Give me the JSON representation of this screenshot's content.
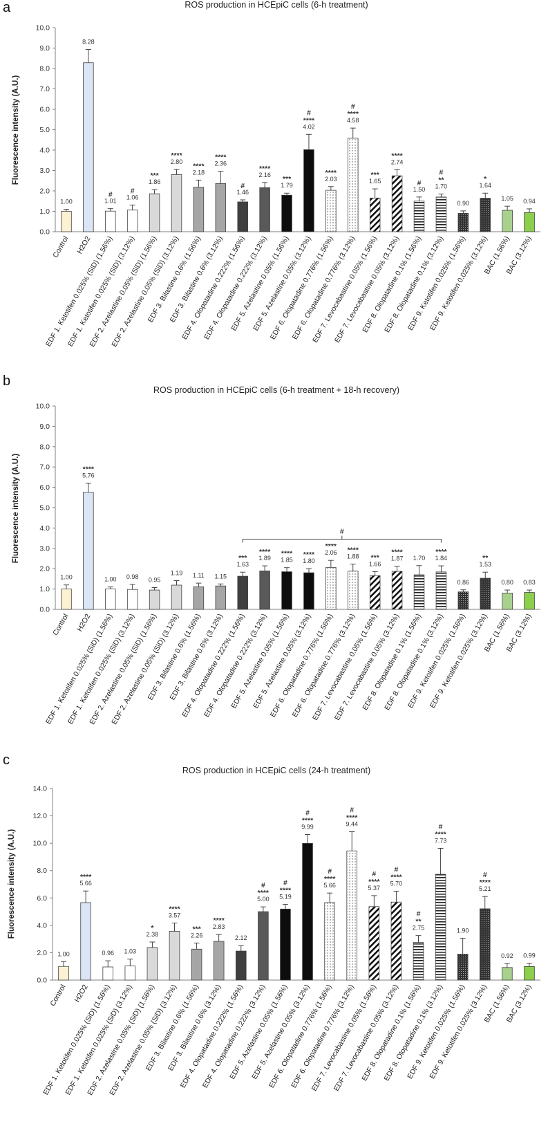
{
  "chart_data": [
    {
      "type": "bar",
      "panel": "a",
      "title": "ROS production in HCEpiC cells (6-h treatment)",
      "ylabel": "Fluorescence intensity (A.U.)",
      "xlabel": "",
      "ylim": [
        0,
        10
      ],
      "yticks": [
        "0.0",
        "1.0",
        "2.0",
        "3.0",
        "4.0",
        "5.0",
        "6.0",
        "7.0",
        "8.0",
        "9.0",
        "10.0"
      ],
      "grid": false,
      "categories": [
        "Control",
        "H2O2",
        "EDF 1. Ketotifen 0.025% (SiD) (1.56%)",
        "EDF 1. Ketotifen 0.025% (SiD) (3.12%)",
        "EDF 2. Azelastine 0.05% (SiD) (1.56%)",
        "EDF 2. Azelastine 0.05% (SiD) (3.12%)",
        "EDF 3. Bilastine 0.6% (1.56%)",
        "EDF 3. Bilastine 0.6% (3.12%)",
        "EDF 4. Olopatadine 0.222% (1.56%)",
        "EDF 4. Olopatadine 0.222% (3.12%)",
        "EDF 5. Azelastine 0.05% (1.56%)",
        "EDF 5. Azelastine 0.05% (3.12%)",
        "EDF 6. Olopatadine 0.776% (1.56%)",
        "EDF 6. Olopatadine 0.776% (3.12%)",
        "EDF 7. Levocabastine 0.05% (1.56%)",
        "EDF 7. Levocabastine 0.05% (3.12%)",
        "EDF 8. Olopatadine 0.1% (1.56%)",
        "EDF 8. Olopatadine 0.1% (3.12%)",
        "EDF 9. Ketotifen 0.025% (1.56%)",
        "EDF 9. Ketotifen 0.025% (3.12%)",
        "BAC (1.56%)",
        "BAC (3.12%)"
      ],
      "values": [
        1.0,
        8.28,
        1.01,
        1.06,
        1.86,
        2.8,
        2.18,
        2.36,
        1.46,
        2.16,
        1.79,
        4.02,
        2.03,
        4.58,
        1.65,
        2.74,
        1.5,
        1.7,
        0.9,
        1.64,
        1.05,
        0.94
      ],
      "value_labels": [
        "1.00",
        "8.28",
        "1.01",
        "1.06",
        "1.86",
        "2.80",
        "2.18",
        "2.36",
        "1.46",
        "2.16",
        "1.79",
        "4.02",
        "2.03",
        "4.58",
        "1.65",
        "2.74",
        "1.50",
        "1.70",
        "0.90",
        "1.64",
        "1.05",
        "0.94"
      ],
      "errors": [
        0.1,
        0.65,
        0.12,
        0.25,
        0.2,
        0.25,
        0.35,
        0.6,
        0.1,
        0.25,
        0.1,
        0.75,
        0.18,
        0.5,
        0.45,
        0.3,
        0.2,
        0.15,
        0.12,
        0.25,
        0.2,
        0.18
      ],
      "significance": [
        "",
        "",
        "#",
        "#",
        "***",
        "****",
        "****",
        "****",
        "#",
        "****",
        "***",
        "****",
        "****",
        "****",
        "***",
        "****",
        "#",
        "**",
        "",
        "*",
        "",
        ""
      ],
      "significance_hash": [
        "",
        "",
        "",
        "",
        "",
        "",
        "",
        "",
        "",
        "",
        "",
        "#",
        "",
        "#",
        "",
        "",
        "",
        "#",
        "",
        "",
        "",
        ""
      ]
    },
    {
      "type": "bar",
      "panel": "b",
      "title": "ROS production in HCEpiC cells (6-h treatment + 18-h recovery)",
      "ylabel": "Fluorescence intensity (A.U.)",
      "xlabel": "",
      "ylim": [
        0,
        10
      ],
      "yticks": [
        "0.0",
        "1.0",
        "2.0",
        "3.0",
        "4.0",
        "5.0",
        "6.0",
        "7.0",
        "8.0",
        "9.0",
        "10.0"
      ],
      "grid": false,
      "bracket": {
        "from_index": 8,
        "to_index": 17,
        "label": "#"
      },
      "categories": [
        "Control",
        "H2O2",
        "EDF 1. Ketotifen 0.025% (SiD) (1.56%)",
        "EDF 1. Ketotifen 0.025% (SiD) (3.12%)",
        "EDF 2. Azelastine 0.05% (SiD) (1.56%)",
        "EDF 2. Azelastine 0.05% (SiD) (3.12%)",
        "EDF 3. Bilastine 0.6% (1.56%)",
        "EDF 3. Bilastine 0.6% (3.12%)",
        "EDF 4. Olopatadine 0.222% (1.56%)",
        "EDF 4. Olopatadine 0.222% (3.12%)",
        "EDF 5. Azelastine 0.05% (1.56%)",
        "EDF 5. Azelastine 0.05% (3.12%)",
        "EDF 6. Olopatadine 0.776% (1.56%)",
        "EDF 6. Olopatadine 0.776% (3.12%)",
        "EDF 7. Levocabastine 0.05% (1.56%)",
        "EDF 7. Levocabastine 0.05% (3.12%)",
        "EDF 8. Olopatadine 0.1% (1.56%)",
        "EDF 8. Olopatadine 0.1% (3.12%)",
        "EDF 9. Ketotifen 0.025% (1.56%)",
        "EDF 9. Ketotifen 0.025% (3.12%)",
        "BAC (1.56%)",
        "BAC (3.12%)"
      ],
      "values": [
        1.0,
        5.76,
        1.0,
        0.98,
        0.95,
        1.19,
        1.11,
        1.15,
        1.63,
        1.89,
        1.85,
        1.8,
        2.06,
        1.88,
        1.66,
        1.87,
        1.7,
        1.84,
        0.86,
        1.53,
        0.8,
        0.83
      ],
      "value_labels": [
        "1.00",
        "5.76",
        "1.00",
        "0.98",
        "0.95",
        "1.19",
        "1.11",
        "1.15",
        "1.63",
        "1.89",
        "1.85",
        "1.80",
        "2.06",
        "1.88",
        "1.66",
        "1.87",
        "1.70",
        "1.84",
        "0.86",
        "1.53",
        "0.80",
        "0.83"
      ],
      "errors": [
        0.2,
        0.45,
        0.1,
        0.25,
        0.12,
        0.22,
        0.18,
        0.1,
        0.2,
        0.25,
        0.2,
        0.2,
        0.35,
        0.35,
        0.2,
        0.25,
        0.45,
        0.3,
        0.1,
        0.3,
        0.15,
        0.12
      ],
      "significance": [
        "",
        "****",
        "",
        "",
        "",
        "",
        "",
        "",
        "***",
        "****",
        "****",
        "****",
        "****",
        "****",
        "***",
        "****",
        "",
        "****",
        "",
        "**",
        "",
        ""
      ],
      "significance_hash": [
        "",
        "",
        "",
        "",
        "",
        "",
        "",
        "",
        "",
        "",
        "",
        "",
        "",
        "",
        "",
        "",
        "",
        "",
        "",
        "",
        "",
        ""
      ]
    },
    {
      "type": "bar",
      "panel": "c",
      "title": "ROS production in HCEpiC cells (24-h treatment)",
      "ylabel": "Fluorescence intensity (A.U.)",
      "xlabel": "",
      "ylim": [
        0,
        14
      ],
      "yticks": [
        "0.0",
        "2.0",
        "4.0",
        "6.0",
        "8.0",
        "10.0",
        "12.0",
        "14.0"
      ],
      "grid": false,
      "categories": [
        "Control",
        "H2O2",
        "EDF 1. Ketotifen 0.025% (SiD) (1.56%)",
        "EDF 1. Ketotifen 0.025% (SiD) (3.12%)",
        "EDF 2. Azelastine 0.05% (SiD) (1.56%)",
        "EDF 2. Azelastine 0.05% (SiD) (3.12%)",
        "EDF 3. Bilastine 0.6% (1.56%)",
        "EDF 3. Bilastine 0.6% (3.12%)",
        "EDF 4. Olopatadine 0.222% (1.56%)",
        "EDF 4. Olopatadine 0.222% (3.12%)",
        "EDF 5. Azelastine 0.05% (1.56%)",
        "EDF 5. Azelastine 0.05% (3.12%)",
        "EDF 6. Olopatadine 0.776% (1.56%)",
        "EDF 6. Olopatadine 0.776% (3.12%)",
        "EDF 7. Levocabastine 0.05% (1.56%)",
        "EDF 7. Levocabastine 0.05% (3.12%)",
        "EDF 8. Olopatadine 0.1% (1.56%)",
        "EDF 8. Olopatadine 0.1% (3.12%)",
        "EDF 9. Ketotifen 0.025% (1.56%)",
        "EDF 9. Ketotifen 0.025% (3.12%)",
        "BAC (1.56%)",
        "BAC (3.12%)"
      ],
      "values": [
        1.0,
        5.66,
        0.96,
        1.03,
        2.38,
        3.57,
        2.26,
        2.83,
        2.12,
        5.0,
        5.19,
        9.99,
        5.66,
        9.44,
        5.37,
        5.7,
        2.75,
        7.73,
        1.9,
        5.21,
        0.92,
        0.99
      ],
      "value_labels": [
        "1.00",
        "5.66",
        "0.96",
        "1.03",
        "2.38",
        "3.57",
        "2.26",
        "2.83",
        "2.12",
        "5.00",
        "5.19",
        "9.99",
        "5.66",
        "9.44",
        "5.37",
        "5.70",
        "2.75",
        "7.73",
        "1.90",
        "5.21",
        "0.92",
        "0.99"
      ],
      "errors": [
        0.35,
        0.85,
        0.45,
        0.5,
        0.4,
        0.6,
        0.45,
        0.5,
        0.4,
        0.35,
        0.35,
        0.65,
        0.7,
        1.4,
        0.8,
        0.8,
        0.5,
        1.9,
        1.15,
        0.9,
        0.3,
        0.25
      ],
      "significance": [
        "",
        "****",
        "",
        "",
        "*",
        "****",
        "***",
        "****",
        "",
        "****",
        "****",
        "****",
        "****",
        "****",
        "****",
        "****",
        "**",
        "****",
        "",
        "****",
        "",
        ""
      ],
      "significance_hash": [
        "",
        "",
        "",
        "",
        "",
        "",
        "",
        "",
        "",
        "#",
        "#",
        "#",
        "#",
        "#",
        "#",
        "#",
        "#",
        "#",
        "",
        "#",
        "",
        ""
      ]
    }
  ],
  "colors": {
    "control": "#fdf1d4",
    "h2o2": "#dbe5f5",
    "white": "#ffffff",
    "lightgray": "#d9d9d9",
    "midgray": "#a6a6a6",
    "darkgray": "#595959",
    "darker": "#3f3f3f",
    "black": "#0d0d0d",
    "bac": "#a9d18e",
    "bac2": "#8ccf4d",
    "axis": "#7f7f7f",
    "edge": "#404040"
  },
  "bar_styles": [
    "control",
    "h2o2",
    "white",
    "white",
    "lightgray",
    "lightgray",
    "midgray",
    "midgray",
    "darker",
    "darkgray",
    "black",
    "black",
    "dots",
    "dots",
    "diag",
    "diag",
    "hlines",
    "hlines",
    "grid",
    "grid",
    "bac",
    "bac2"
  ]
}
